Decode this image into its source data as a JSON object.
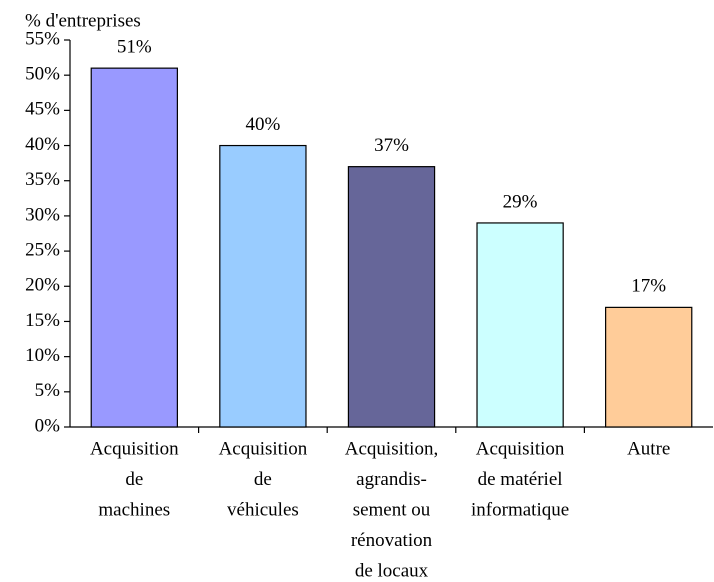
{
  "chart_data": {
    "type": "bar",
    "y_label": "% d'entreprises",
    "categories": [
      [
        "Acquisition",
        "de",
        "machines"
      ],
      [
        "Acquisition",
        "de",
        "véhicules"
      ],
      [
        "Acquisition,",
        "agrandis-",
        "sement ou",
        "rénovation",
        "de locaux"
      ],
      [
        "Acquisition",
        "de matériel",
        "informatique"
      ],
      [
        "Autre"
      ]
    ],
    "values": [
      51,
      40,
      37,
      29,
      17
    ],
    "value_labels": [
      "51%",
      "40%",
      "37%",
      "29%",
      "17%"
    ],
    "colors": [
      "#9999ff",
      "#99ccff",
      "#666699",
      "#ccffff",
      "#ffcc99"
    ],
    "ylim": [
      0,
      55
    ],
    "yticks": [
      {
        "value": 0,
        "label": "0%"
      },
      {
        "value": 5,
        "label": "5%"
      },
      {
        "value": 10,
        "label": "10%"
      },
      {
        "value": 15,
        "label": "15%"
      },
      {
        "value": 20,
        "label": "20%"
      },
      {
        "value": 25,
        "label": "25%"
      },
      {
        "value": 30,
        "label": "30%"
      },
      {
        "value": 35,
        "label": "35%"
      },
      {
        "value": 40,
        "label": "40%"
      },
      {
        "value": 45,
        "label": "45%"
      },
      {
        "value": 50,
        "label": "50%"
      },
      {
        "value": 55,
        "label": "55%"
      }
    ],
    "grid": false
  }
}
